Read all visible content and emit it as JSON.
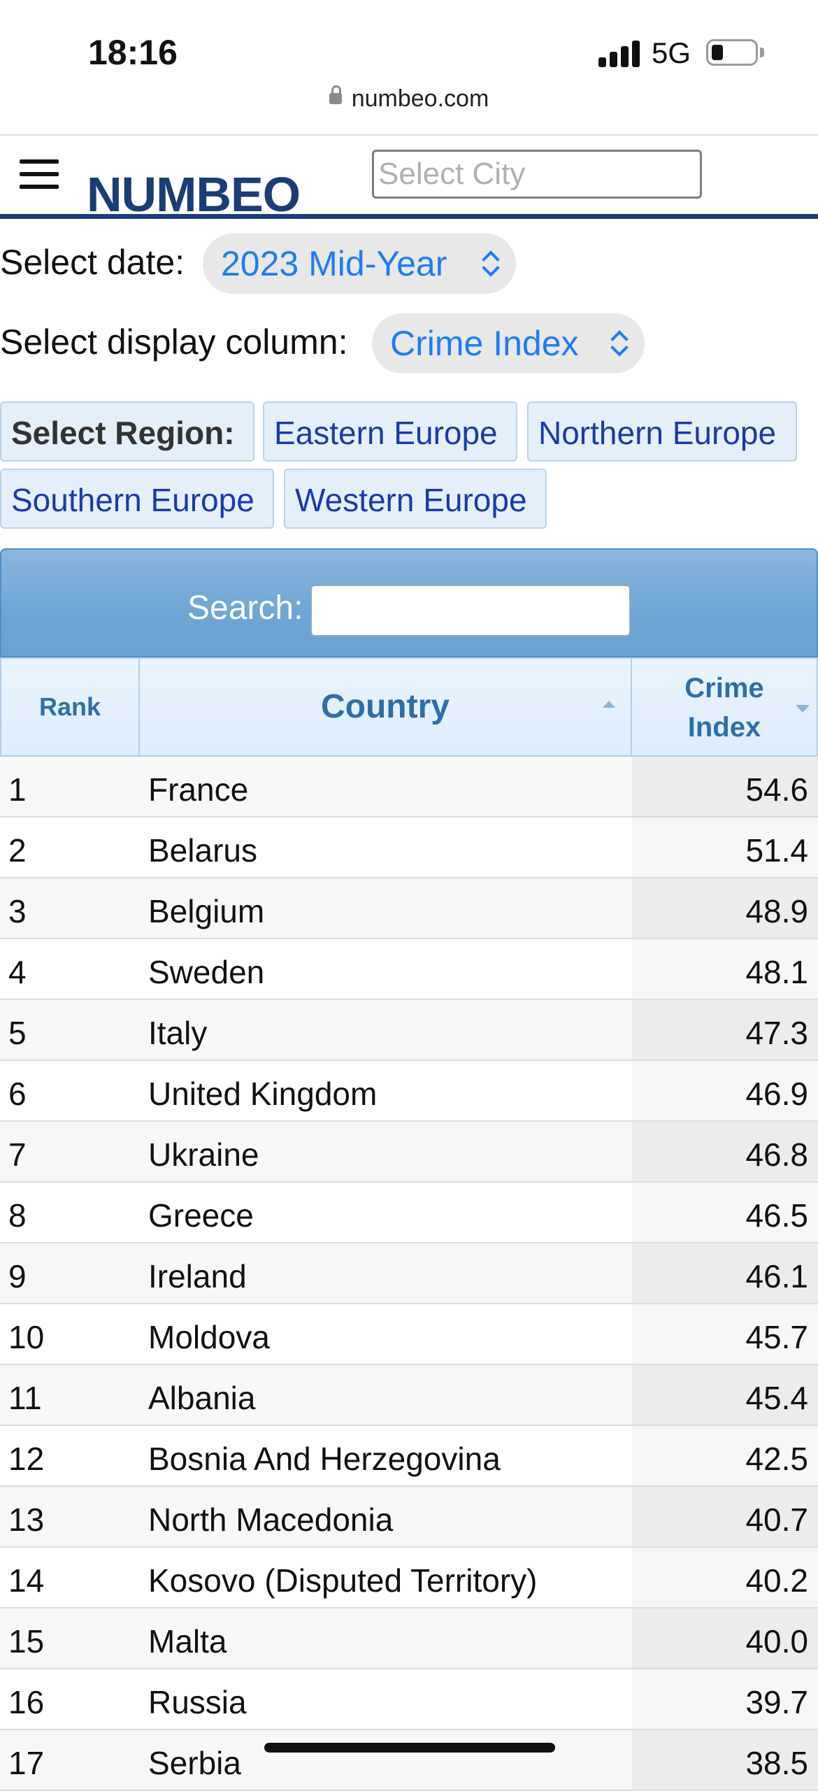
{
  "status_bar": {
    "time": "18:16",
    "network": "5G"
  },
  "browser": {
    "url": "numbeo.com"
  },
  "header": {
    "logo": "NUMBEO",
    "city_placeholder": "Select City"
  },
  "selectors": {
    "date_label": "Select date:",
    "date_value": "2023 Mid-Year",
    "column_label": "Select display column:",
    "column_value": "Crime Index"
  },
  "regions": {
    "label": "Select Region:",
    "items": [
      "Eastern Europe",
      "Northern Europe",
      "Southern Europe",
      "Western Europe"
    ]
  },
  "search": {
    "label": "Search:"
  },
  "table": {
    "headers": {
      "rank": "Rank",
      "country": "Country",
      "crime_line1": "Crime",
      "crime_line2": "Index"
    },
    "rows": [
      {
        "rank": "1",
        "country": "France",
        "value": "54.6"
      },
      {
        "rank": "2",
        "country": "Belarus",
        "value": "51.4"
      },
      {
        "rank": "3",
        "country": "Belgium",
        "value": "48.9"
      },
      {
        "rank": "4",
        "country": "Sweden",
        "value": "48.1"
      },
      {
        "rank": "5",
        "country": "Italy",
        "value": "47.3"
      },
      {
        "rank": "6",
        "country": "United Kingdom",
        "value": "46.9"
      },
      {
        "rank": "7",
        "country": "Ukraine",
        "value": "46.8"
      },
      {
        "rank": "8",
        "country": "Greece",
        "value": "46.5"
      },
      {
        "rank": "9",
        "country": "Ireland",
        "value": "46.1"
      },
      {
        "rank": "10",
        "country": "Moldova",
        "value": "45.7"
      },
      {
        "rank": "11",
        "country": "Albania",
        "value": "45.4"
      },
      {
        "rank": "12",
        "country": "Bosnia And Herzegovina",
        "value": "42.5"
      },
      {
        "rank": "13",
        "country": "North Macedonia",
        "value": "40.7"
      },
      {
        "rank": "14",
        "country": "Kosovo (Disputed Territory)",
        "value": "40.2"
      },
      {
        "rank": "15",
        "country": "Malta",
        "value": "40.0"
      },
      {
        "rank": "16",
        "country": "Russia",
        "value": "39.7"
      },
      {
        "rank": "17",
        "country": "Serbia",
        "value": "38.5"
      }
    ]
  },
  "colors": {
    "brand": "#1a3d75",
    "link": "#1f7cf0",
    "region_text": "#1a3aa8",
    "table_header_text": "#2e6ea8"
  }
}
